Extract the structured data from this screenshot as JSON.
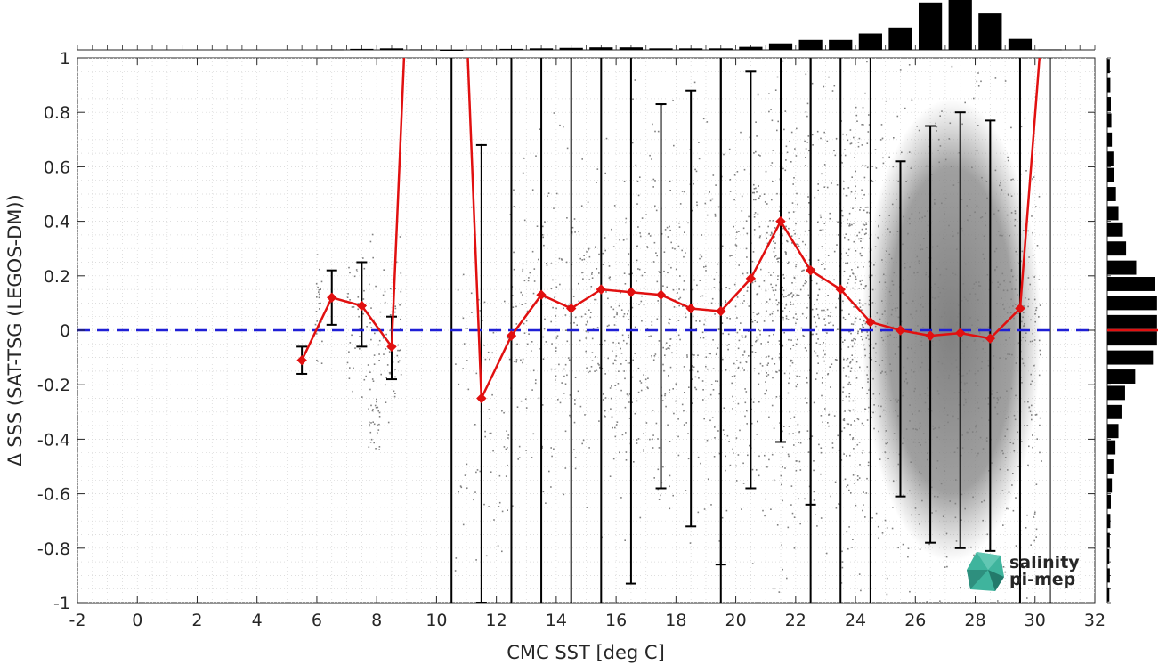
{
  "chart_data": {
    "type": "scatter",
    "xlabel": "CMC SST [deg C]",
    "ylabel": "Δ SSS (SAT-TSG (LEGOS-DM))",
    "xlim": [
      -2,
      32
    ],
    "ylim": [
      -1,
      1
    ],
    "xticks": [
      "-2",
      "0",
      "2",
      "4",
      "6",
      "8",
      "10",
      "12",
      "14",
      "16",
      "18",
      "20",
      "22",
      "24",
      "26",
      "28",
      "30",
      "32"
    ],
    "yticks": [
      "1",
      "0.8",
      "0.6",
      "0.4",
      "0.2",
      "0",
      "-0.2",
      "-0.4",
      "-0.6",
      "-0.8",
      "-1"
    ],
    "grid": true,
    "reference_line": {
      "y": 0,
      "color": "#1f1fd6",
      "style": "dashed"
    },
    "bin_stats": {
      "name": "",
      "color": "#e11010",
      "marker": "diamond",
      "x": [
        5.5,
        6.5,
        7.5,
        8.5,
        9.5,
        10.5,
        11.5,
        12.5,
        13.5,
        14.5,
        15.5,
        16.5,
        17.5,
        18.5,
        19.5,
        20.5,
        21.5,
        22.5,
        23.5,
        24.5,
        25.5,
        26.5,
        27.5,
        28.5,
        29.5,
        30.5
      ],
      "mean": [
        -0.11,
        0.12,
        0.09,
        -0.06,
        2.5,
        2.5,
        -0.25,
        -0.02,
        0.13,
        0.08,
        0.15,
        0.14,
        0.13,
        0.08,
        0.07,
        0.19,
        0.4,
        0.22,
        0.15,
        0.03,
        0.0,
        -0.02,
        -0.01,
        -0.03,
        0.08,
        1.5
      ],
      "err_low": [
        -0.16,
        0.02,
        -0.06,
        -0.18,
        null,
        null,
        -1.0,
        null,
        null,
        null,
        null,
        -0.93,
        -0.58,
        -0.72,
        -0.86,
        -0.58,
        -0.41,
        -0.64,
        null,
        null,
        -0.61,
        -0.78,
        -0.8,
        -0.81,
        null,
        null
      ],
      "err_high": [
        -0.06,
        0.22,
        0.25,
        0.05,
        null,
        null,
        0.68,
        null,
        null,
        null,
        null,
        null,
        0.83,
        0.88,
        null,
        0.95,
        null,
        null,
        null,
        null,
        0.62,
        0.75,
        0.8,
        0.77,
        null,
        null
      ],
      "full_span_bins": [
        10.5,
        12.5,
        13.5,
        14.5,
        15.5,
        19.5,
        22.5,
        23.5,
        24.5,
        29.5,
        30.5
      ]
    },
    "x_histogram": {
      "bin_centers": [
        6.5,
        7.5,
        8.5,
        9.5,
        10.5,
        11.5,
        12.5,
        13.5,
        14.5,
        15.5,
        16.5,
        17.5,
        18.5,
        19.5,
        20.5,
        21.5,
        22.5,
        23.5,
        24.5,
        25.5,
        26.5,
        27.5,
        28.5,
        29.5,
        30.5
      ],
      "counts": [
        0.01,
        0.02,
        0.03,
        0.01,
        0.0,
        0.01,
        0.02,
        0.03,
        0.04,
        0.05,
        0.05,
        0.03,
        0.03,
        0.03,
        0.06,
        0.13,
        0.2,
        0.2,
        0.33,
        0.45,
        0.95,
        1.0,
        0.73,
        0.22,
        0.01
      ]
    },
    "y_histogram": {
      "bin_centers": [
        0.97,
        0.9,
        0.83,
        0.77,
        0.7,
        0.63,
        0.57,
        0.5,
        0.43,
        0.37,
        0.3,
        0.23,
        0.17,
        0.1,
        0.03,
        -0.03,
        -0.1,
        -0.17,
        -0.23,
        -0.3,
        -0.37,
        -0.43,
        -0.5,
        -0.57,
        -0.63,
        -0.7,
        -0.77,
        -0.83,
        -0.9,
        -0.97
      ],
      "counts": [
        0.05,
        0.06,
        0.07,
        0.08,
        0.09,
        0.12,
        0.14,
        0.17,
        0.22,
        0.29,
        0.37,
        0.57,
        0.93,
        0.98,
        0.98,
        0.98,
        0.9,
        0.55,
        0.35,
        0.28,
        0.22,
        0.16,
        0.12,
        0.09,
        0.07,
        0.06,
        0.05,
        0.04,
        0.05,
        0.04
      ],
      "median_line_color": "#e11010"
    },
    "scatter_color": "#808080"
  },
  "logo": {
    "line1": "salinity",
    "line2": "pi-mep",
    "color1": "#2aa38f",
    "color2": "#1f6f63"
  }
}
